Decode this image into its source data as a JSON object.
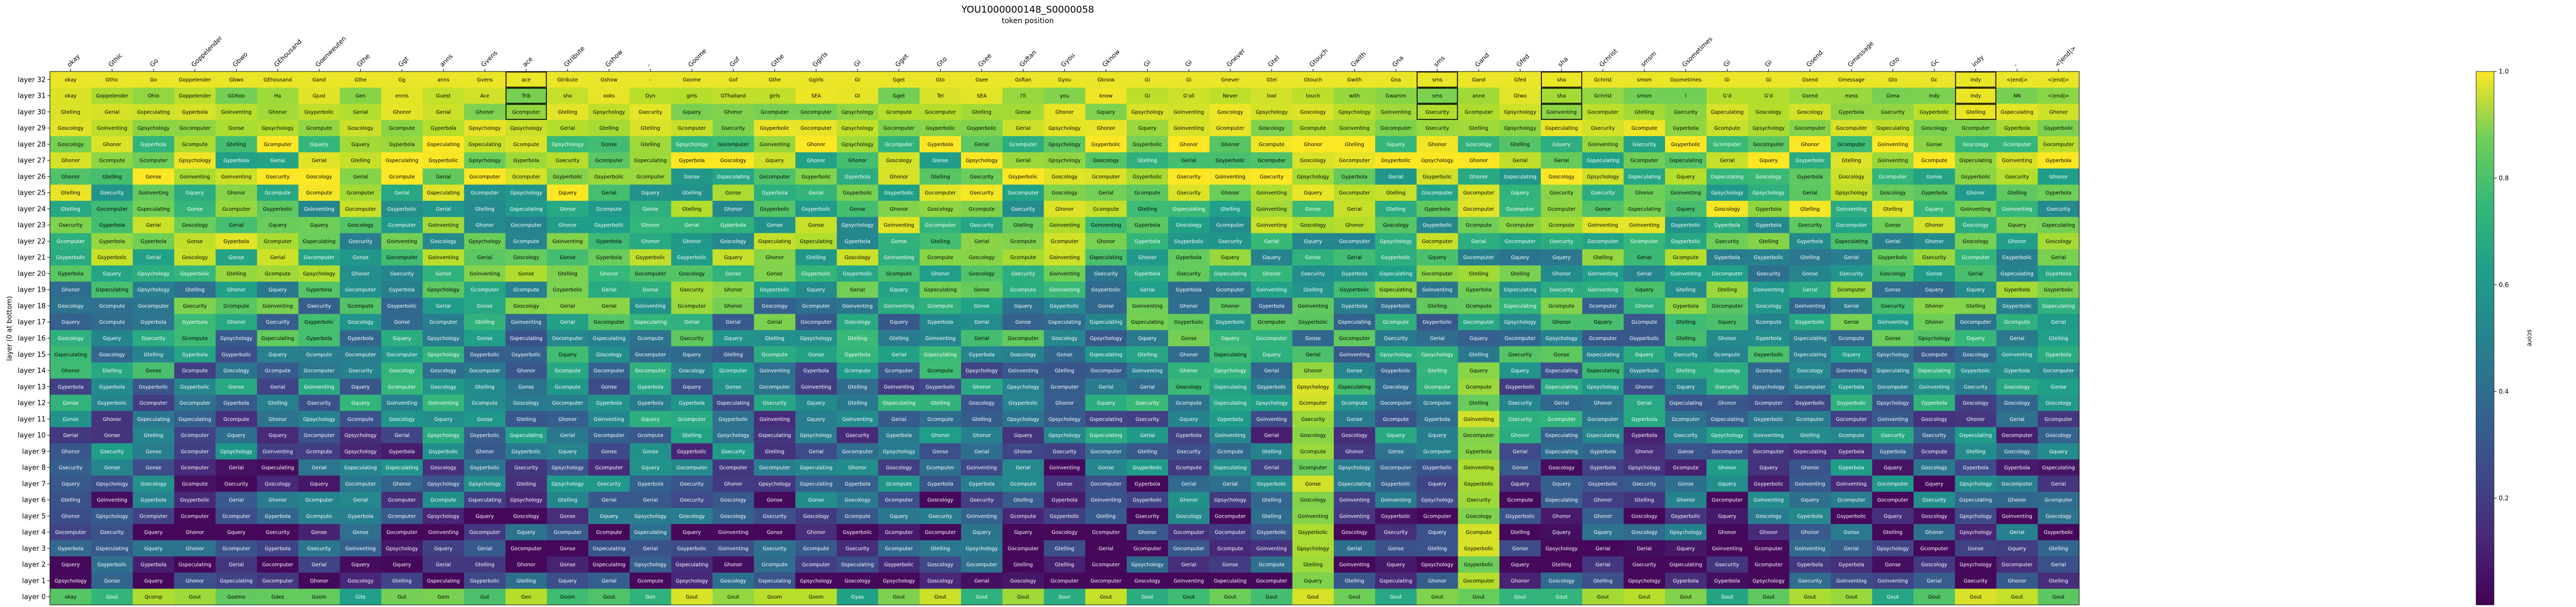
{
  "chart_data": {
    "type": "heatmap",
    "title": "YOU1000000148_S0000058",
    "subtitle": "token position",
    "ylabel": "layer (0 at bottom)",
    "colorbar_label": "score",
    "colorbar_ticks": [
      "0.2",
      "0.4",
      "0.6",
      "0.8",
      "1.0"
    ],
    "colorbar_tick_values": [
      0.2,
      0.4,
      0.6,
      0.8,
      1.0
    ],
    "vlim": [
      0,
      1
    ],
    "colormap": "viridis",
    "x_tokens": [
      "okay",
      "Gthic",
      "Go",
      "Goppelender",
      "Gbwo",
      "GEhousand",
      "Goenweuten",
      "Gthe",
      "Ggt",
      "anns",
      "Gvens",
      "ace",
      "Gtribute",
      "Gshow",
      "-",
      "Goome",
      "Gof",
      "Gthe",
      "Ggirls",
      "Gi",
      "Gget",
      "Gto",
      "Gsee",
      "Gsftan",
      "Gyou",
      "Gknow",
      "Gi",
      "Gi",
      "Gnever",
      "Gtel",
      "Gtouch",
      "Gwith",
      "Gna",
      "sms",
      "Gand",
      "Gfed",
      "sha",
      "Gchrist",
      "smsm",
      "Gsometimes",
      "Gi",
      "Gi",
      "Gsend",
      "Gmessage",
      "Gto",
      "Gc",
      "indy",
      "-",
      "<|end|>"
    ],
    "y_labels": [
      "layer 32",
      "layer 31",
      "layer 30",
      "layer 29",
      "layer 28",
      "layer 27",
      "layer 26",
      "layer 25",
      "layer 24",
      "layer 23",
      "layer 22",
      "layer 21",
      "layer 20",
      "layer 19",
      "layer 18",
      "layer 17",
      "layer 16",
      "layer 15",
      "layer 14",
      "layer 13",
      "layer 12",
      "layer 11",
      "layer 10",
      "layer 9",
      "layer 8",
      "layer 7",
      "layer 6",
      "layer 5",
      "layer 4",
      "layer 3",
      "layer 2",
      "layer 1",
      "layer 0"
    ],
    "top_row_labels": [
      "okay",
      "Gthic",
      "Go",
      "Goppelender",
      "Gbwo",
      "GEhousand",
      "Gand",
      "Gthe",
      "Gg",
      "anns",
      "Gvens",
      "ace",
      "Gtribute",
      "Gshow",
      "-",
      "Goome",
      "Gof",
      "Gthe",
      "Ggirls",
      "Gi",
      "Gget",
      "Gto",
      "Gsee",
      "Gsftan",
      "Gyou",
      "Gknow",
      "Gi",
      "Gi",
      "Gnever",
      "Gtel",
      "Gtouch",
      "Gwith",
      "Gna",
      "sms",
      "Gand",
      "Gfed",
      "sha",
      "Gchrist",
      "smsm",
      "Gsometimes",
      "Gi",
      "Gi",
      "Gsend",
      "Gmessage",
      "Gto",
      "Gc",
      "indy",
      "<|end|>",
      "<|end|>"
    ],
    "layer31_row_labels": [
      "okay",
      "Goppelender",
      "Ohio",
      "Goppelender",
      "GOhoo",
      "Ha",
      "Gjust",
      "Gen",
      "ennis",
      "Guest",
      "Ace",
      "Trib",
      "sho",
      "ooks",
      "Dyn",
      "girls",
      "GThailand",
      "girls",
      "SEA",
      "GI",
      "Gget",
      "Tel",
      "SEA",
      "I'll",
      "you",
      "know",
      "Gi",
      "G'all",
      "Never",
      "tool",
      "touch",
      "with",
      "Gwamm",
      "sms",
      "anne",
      "Gtwo",
      "sha",
      "Gchrist",
      "smsm",
      "I",
      "G'd",
      "G'd",
      "Gsend",
      "mess",
      "Gima",
      "indy",
      "indy",
      "NN",
      "<|end|>"
    ],
    "bottom_row_labels": [
      "okay",
      "Gout",
      "Qcomp",
      "Gout",
      "Goemo",
      "Gdes",
      "Goom",
      "Gite",
      "Gut",
      "Gem",
      "Gut",
      "Gen",
      "Goom",
      "Gout",
      "Gon",
      "Gout",
      "Gout",
      "Goom",
      "Goom",
      "Gyas",
      "Gout",
      "Gout",
      "Gout",
      "Gout",
      "Gour",
      "Gout",
      "Gout",
      "Gout",
      "Gout",
      "Gout",
      "Gout",
      "Gout",
      "Gout",
      "Gout",
      "Gout",
      "Gout",
      "Gout",
      "Gout",
      "Gout",
      "Gout",
      "Gout",
      "Gout",
      "Gout",
      "Gout",
      "Gout",
      "Gout",
      "Gout",
      "Gout",
      "Gout"
    ],
    "mid_rows_vocab": [
      "Goscology",
      "Gocomputer",
      "Gyperbola",
      "Gcomputer",
      "Gsecurity",
      "Gspeculating",
      "Gcompute",
      "Gonse",
      "Gerial",
      "Gtelling",
      "Gquery",
      "Ghonor",
      "Goinventing",
      "Gsyperbolic",
      "Gpsychology"
    ],
    "highlighted_columns": [
      11,
      33,
      36,
      46
    ],
    "legend": "none",
    "grid": false
  }
}
